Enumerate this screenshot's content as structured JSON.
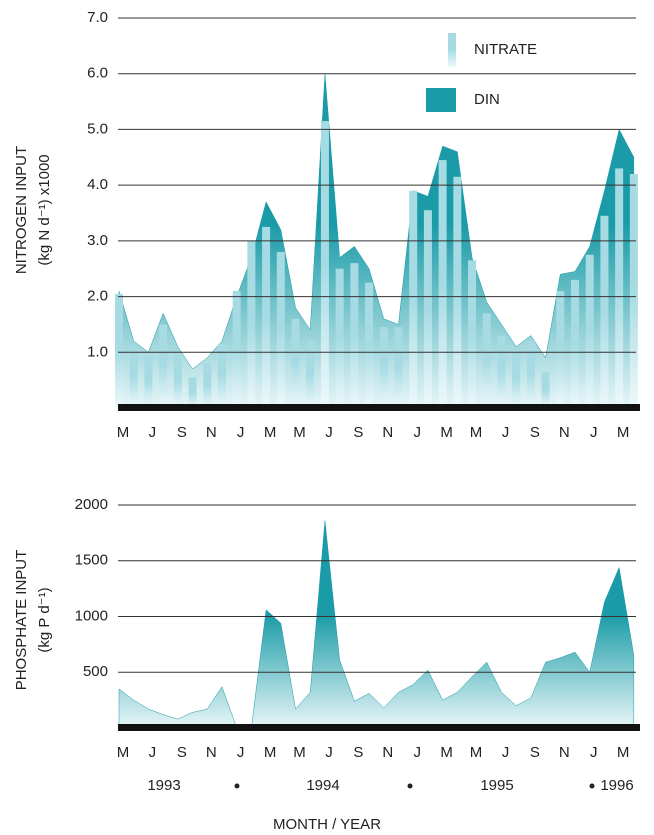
{
  "chart_data": [
    {
      "type": "combo",
      "ylabel": [
        "NITROGEN INPUT",
        "(kg N d⁻¹) x1000"
      ],
      "categories": [
        "M",
        null,
        "J",
        null,
        "S",
        null,
        "N",
        null,
        "J",
        null,
        "M",
        null,
        "M",
        null,
        "J",
        null,
        "S",
        null,
        "N",
        null,
        "J",
        null,
        "M",
        null,
        "M",
        null,
        "J",
        null,
        "S",
        null,
        "N",
        null,
        "J",
        null,
        "M",
        null
      ],
      "series": [
        {
          "name": "NITRATE",
          "type": "bar",
          "color": "#a6dbe4",
          "values": [
            2.05,
            1.1,
            0.95,
            1.5,
            0.95,
            0.55,
            0.8,
            1.15,
            2.1,
            3.0,
            3.25,
            2.8,
            1.6,
            1.2,
            5.15,
            2.5,
            2.6,
            2.25,
            1.45,
            1.45,
            3.9,
            3.55,
            4.45,
            4.15,
            2.65,
            1.7,
            1.3,
            1.05,
            1.2,
            0.65,
            2.1,
            2.3,
            2.75,
            3.45,
            4.3,
            4.2
          ]
        },
        {
          "name": "DIN",
          "type": "area",
          "color": "#1a9ba7",
          "values": [
            2.1,
            1.2,
            1.0,
            1.7,
            1.1,
            0.7,
            0.9,
            1.2,
            2.0,
            2.7,
            3.7,
            3.2,
            1.8,
            1.4,
            6.0,
            2.7,
            2.9,
            2.5,
            1.6,
            1.5,
            3.9,
            3.8,
            4.7,
            4.6,
            2.7,
            1.9,
            1.5,
            1.1,
            1.3,
            0.9,
            2.4,
            2.45,
            2.9,
            3.9,
            5.0,
            4.5
          ]
        }
      ],
      "ylim": [
        0,
        7
      ],
      "yticks": [
        {
          "value": 1,
          "label": "1.0"
        },
        {
          "value": 2,
          "label": "2.0"
        },
        {
          "value": 3,
          "label": "3.0"
        },
        {
          "value": 4,
          "label": "4.0"
        },
        {
          "value": 5,
          "label": "5.0"
        },
        {
          "value": 6,
          "label": "6.0"
        },
        {
          "value": 7,
          "label": "7.0"
        }
      ],
      "grid": true,
      "legend": "top-right"
    },
    {
      "type": "area",
      "ylabel": [
        "PHOSPHATE INPUT",
        "(kg P d⁻¹)"
      ],
      "categories": [
        "M",
        null,
        "J",
        null,
        "S",
        null,
        "N",
        null,
        "J",
        null,
        "M",
        null,
        "M",
        null,
        "J",
        null,
        "S",
        null,
        "N",
        null,
        "J",
        null,
        "M",
        null,
        "M",
        null,
        "J",
        null,
        "S",
        null,
        "N",
        null,
        "J",
        null,
        "M",
        null
      ],
      "series": [
        {
          "name": "PHOSPHATE",
          "type": "area",
          "color": "#1a9ba7",
          "values": [
            350,
            250,
            170,
            120,
            80,
            140,
            170,
            370,
            0,
            0,
            1060,
            940,
            170,
            320,
            1860,
            610,
            240,
            310,
            180,
            320,
            390,
            520,
            250,
            320,
            460,
            590,
            320,
            200,
            270,
            590,
            630,
            680,
            500,
            1130,
            1440,
            650
          ]
        }
      ],
      "ylim": [
        0,
        2000
      ],
      "yticks": [
        500,
        1000,
        1500,
        2000
      ],
      "grid": true,
      "year_labels": [
        "1993",
        "1994",
        "1995",
        "1996"
      ],
      "xlabel": "MONTH / YEAR"
    }
  ]
}
